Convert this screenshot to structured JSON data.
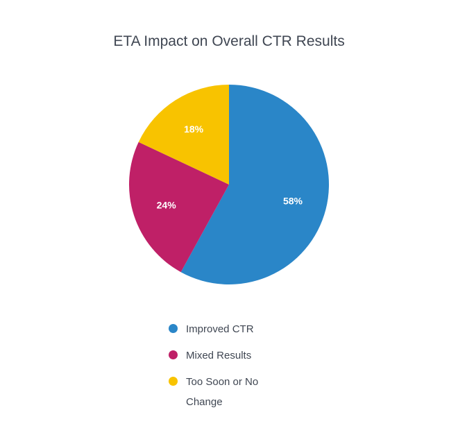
{
  "chart_data": {
    "type": "pie",
    "title": "ETA Impact on Overall CTR Results",
    "slices": [
      {
        "label": "Improved CTR",
        "value": 58,
        "display": "58%",
        "color": "#2a86c8"
      },
      {
        "label": "Mixed Results",
        "value": 24,
        "display": "24%",
        "color": "#bf2067"
      },
      {
        "label": "Too Soon or No Change",
        "value": 18,
        "display": "18%",
        "color": "#f8c300"
      }
    ],
    "legend_position": "bottom"
  }
}
